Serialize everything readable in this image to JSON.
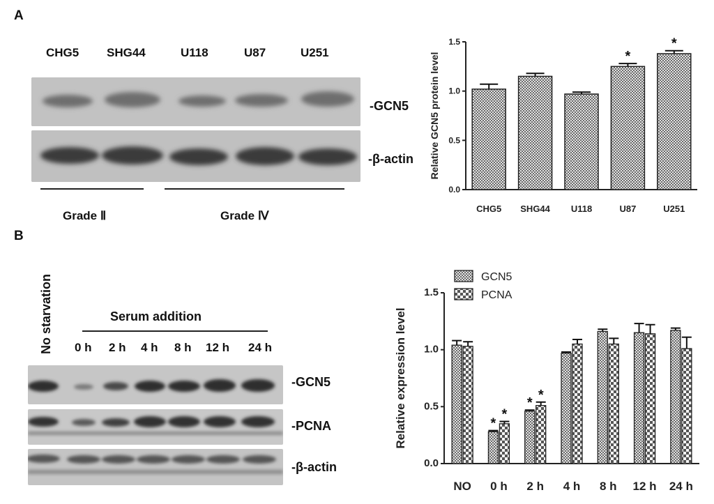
{
  "panel_a": {
    "letter": "A",
    "lanes": [
      "CHG5",
      "SHG44",
      "U118",
      "U87",
      "U251"
    ],
    "bands": [
      "-GCN5",
      "-β-actin"
    ],
    "grades": [
      "Grade Ⅱ",
      "Grade Ⅳ"
    ]
  },
  "panel_b": {
    "letter": "B",
    "no_starvation": "No starvation",
    "serum_addition": "Serum addition",
    "lanes": [
      "0 h",
      "2 h",
      "4 h",
      "8 h",
      "12 h",
      "24 h"
    ],
    "bands": [
      "-GCN5",
      "-PCNA",
      "-β-actin"
    ]
  },
  "chart_data": [
    {
      "type": "bar",
      "categories": [
        "CHG5",
        "SHG44",
        "U118",
        "U87",
        "U251"
      ],
      "values": [
        1.02,
        1.15,
        0.97,
        1.25,
        1.38
      ],
      "errors": [
        0.05,
        0.03,
        0.02,
        0.03,
        0.03
      ],
      "significance": [
        "",
        "",
        "",
        "*",
        "*"
      ],
      "ylabel": "Relative GCN5 protein level",
      "ylim": [
        0,
        1.5
      ],
      "yticks": [
        "0.0",
        "0.5",
        "1.0",
        "1.5"
      ],
      "grid": false
    },
    {
      "type": "bar",
      "categories": [
        "NO",
        "0 h",
        "2 h",
        "4 h",
        "8 h",
        "12 h",
        "24 h"
      ],
      "series": [
        {
          "name": "GCN5",
          "values": [
            1.04,
            0.28,
            0.46,
            0.97,
            1.16,
            1.15,
            1.17
          ],
          "errors": [
            0.04,
            0.01,
            0.01,
            0.01,
            0.02,
            0.08,
            0.02
          ],
          "significance": [
            "",
            "*",
            "*",
            "",
            "",
            "",
            ""
          ]
        },
        {
          "name": "PCNA",
          "values": [
            1.03,
            0.35,
            0.51,
            1.05,
            1.05,
            1.14,
            1.01
          ],
          "errors": [
            0.04,
            0.02,
            0.03,
            0.04,
            0.05,
            0.08,
            0.1
          ],
          "significance": [
            "",
            "*",
            "*",
            "",
            "",
            "",
            ""
          ]
        }
      ],
      "ylabel": "Relative expression level",
      "ylim": [
        0,
        1.5
      ],
      "yticks": [
        "0.0",
        "0.5",
        "1.0",
        "1.5"
      ],
      "legend_position": "top-left",
      "grid": false
    }
  ]
}
